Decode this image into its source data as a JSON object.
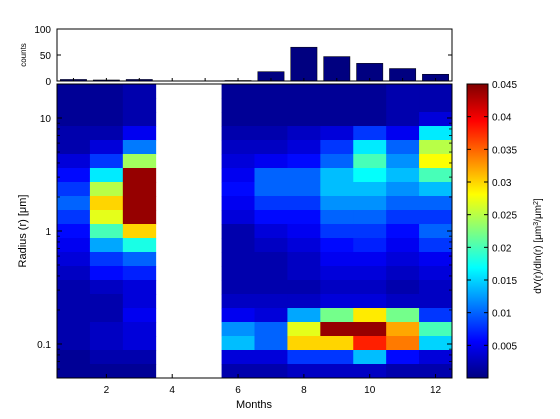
{
  "chart_data": [
    {
      "type": "bar",
      "ylabel": "counts",
      "ylim": [
        0,
        100
      ],
      "yticks": [
        0,
        50,
        100
      ],
      "yticklabels": [
        "0",
        "50",
        "100"
      ],
      "xlim": [
        0.5,
        12.5
      ],
      "x": [
        1,
        2,
        3,
        4,
        5,
        6,
        7,
        8,
        9,
        10,
        11,
        12
      ],
      "values": [
        3,
        2,
        3,
        0,
        0,
        1,
        18,
        65,
        47,
        34,
        24,
        13
      ],
      "bar_color": "#000080"
    },
    {
      "type": "heatmap",
      "xlabel": "Months",
      "ylabel_parts": [
        "Radius (r) [",
        "μ",
        "m]"
      ],
      "xlim": [
        0.5,
        12.5
      ],
      "xticks": [
        2,
        4,
        6,
        8,
        10,
        12
      ],
      "xticklabels": [
        "2",
        "4",
        "6",
        "8",
        "10",
        "12"
      ],
      "yscale": "log",
      "ylim": [
        0.05,
        20
      ],
      "yticks": [
        0.1,
        1,
        10
      ],
      "yticklabels": [
        "0.1",
        "1",
        "10"
      ],
      "months": [
        1,
        2,
        3,
        6,
        7,
        8,
        9,
        10,
        11,
        12
      ],
      "missing_months": [
        4,
        5
      ],
      "bins_top_to_bottom": 21,
      "values": [
        [
          0.001,
          0.001,
          0.002,
          0.001,
          0.001,
          0.001,
          0.001,
          0.001,
          0.002,
          0.002
        ],
        [
          0.001,
          0.001,
          0.002,
          0.001,
          0.001,
          0.001,
          0.001,
          0.001,
          0.002,
          0.002
        ],
        [
          0.001,
          0.001,
          0.002,
          0.001,
          0.001,
          0.001,
          0.001,
          0.001,
          0.002,
          0.004
        ],
        [
          0.002,
          0.002,
          0.005,
          0.002,
          0.002,
          0.003,
          0.004,
          0.008,
          0.005,
          0.016
        ],
        [
          0.002,
          0.004,
          0.011,
          0.003,
          0.003,
          0.004,
          0.008,
          0.016,
          0.01,
          0.025
        ],
        [
          0.004,
          0.008,
          0.024,
          0.004,
          0.005,
          0.006,
          0.01,
          0.02,
          0.012,
          0.028
        ],
        [
          0.006,
          0.016,
          0.044,
          0.005,
          0.01,
          0.01,
          0.014,
          0.017,
          0.014,
          0.02
        ],
        [
          0.008,
          0.025,
          0.044,
          0.006,
          0.01,
          0.01,
          0.014,
          0.014,
          0.012,
          0.014
        ],
        [
          0.01,
          0.03,
          0.044,
          0.005,
          0.008,
          0.008,
          0.012,
          0.012,
          0.01,
          0.01
        ],
        [
          0.008,
          0.027,
          0.044,
          0.004,
          0.006,
          0.006,
          0.01,
          0.01,
          0.008,
          0.008
        ],
        [
          0.006,
          0.02,
          0.03,
          0.002,
          0.004,
          0.005,
          0.008,
          0.008,
          0.006,
          0.01
        ],
        [
          0.005,
          0.013,
          0.018,
          0.002,
          0.003,
          0.004,
          0.006,
          0.007,
          0.005,
          0.008
        ],
        [
          0.004,
          0.008,
          0.01,
          0.002,
          0.002,
          0.003,
          0.005,
          0.005,
          0.004,
          0.005
        ],
        [
          0.003,
          0.006,
          0.007,
          0.002,
          0.002,
          0.003,
          0.004,
          0.004,
          0.003,
          0.004
        ],
        [
          0.002,
          0.003,
          0.004,
          0.002,
          0.002,
          0.002,
          0.003,
          0.003,
          0.002,
          0.003
        ],
        [
          0.002,
          0.002,
          0.004,
          0.003,
          0.003,
          0.003,
          0.004,
          0.004,
          0.003,
          0.003
        ],
        [
          0.002,
          0.002,
          0.005,
          0.005,
          0.004,
          0.013,
          0.022,
          0.029,
          0.022,
          0.008
        ],
        [
          0.002,
          0.003,
          0.004,
          0.012,
          0.01,
          0.027,
          0.044,
          0.044,
          0.032,
          0.02
        ],
        [
          0.002,
          0.003,
          0.004,
          0.014,
          0.01,
          0.03,
          0.03,
          0.038,
          0.034,
          0.015
        ],
        [
          0.001,
          0.002,
          0.002,
          0.004,
          0.004,
          0.008,
          0.008,
          0.014,
          0.006,
          0.004
        ],
        [
          0.001,
          0.001,
          0.001,
          0.002,
          0.002,
          0.003,
          0.003,
          0.003,
          0.002,
          0.002
        ]
      ]
    },
    {
      "type": "colorbar",
      "colormap": "jet",
      "range": [
        0,
        0.045
      ],
      "ticks": [
        0.005,
        0.01,
        0.015,
        0.02,
        0.025,
        0.03,
        0.035,
        0.04,
        0.045
      ],
      "ticklabels": [
        "0.005",
        "0.01",
        "0.015",
        "0.02",
        "0.025",
        "0.03",
        "0.035",
        "0.04",
        "0.045"
      ],
      "label_parts": [
        "dV(r)/dln(r) [",
        "μ",
        "m",
        "3",
        "/",
        "μ",
        "m",
        "2",
        "]"
      ]
    }
  ]
}
